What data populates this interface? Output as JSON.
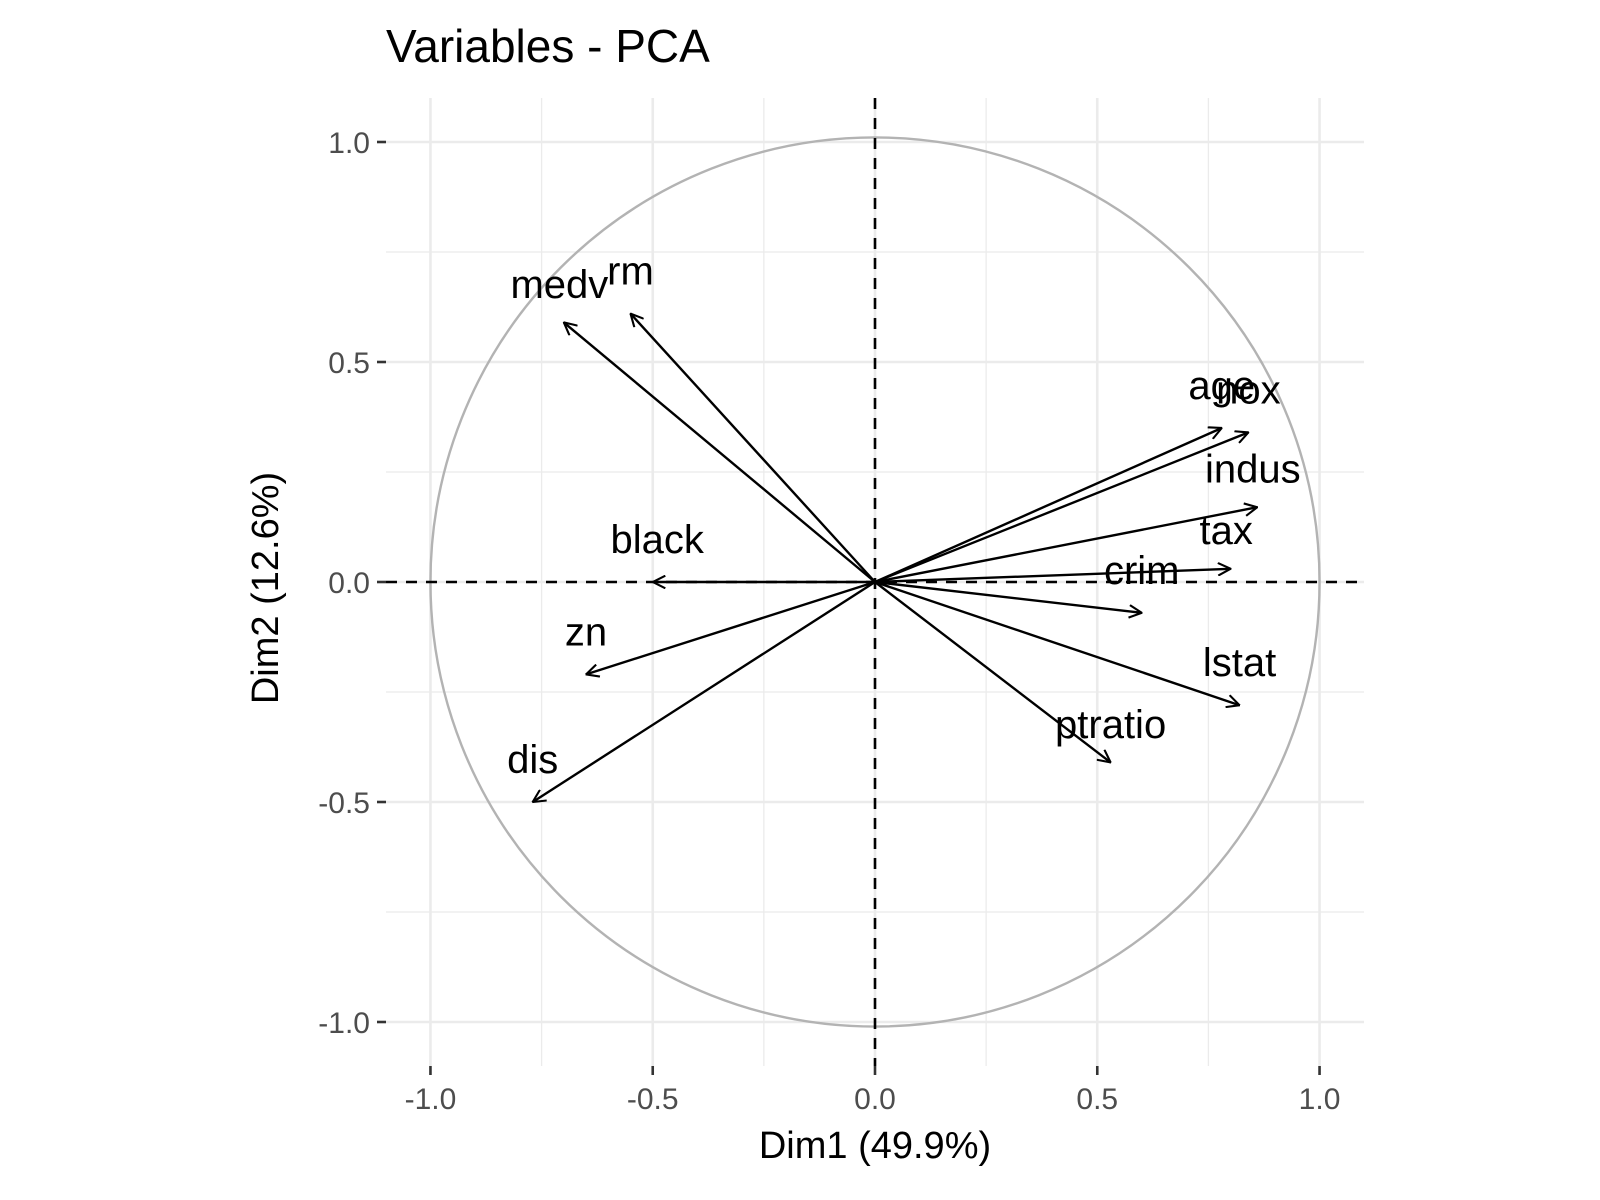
{
  "chart_data": {
    "type": "scatter",
    "title": "Variables - PCA",
    "xlabel": "Dim1 (49.9%)",
    "ylabel": "Dim2 (12.6%)",
    "xlim": [
      -1.1,
      1.1
    ],
    "ylim": [
      -1.1,
      1.1
    ],
    "x_ticks": [
      -1.0,
      -0.5,
      0.0,
      0.5,
      1.0
    ],
    "x_tick_labels": [
      "-1.0",
      "-0.5",
      "0.0",
      "0.5",
      "1.0"
    ],
    "y_ticks": [
      -1.0,
      -0.5,
      0.0,
      0.5,
      1.0
    ],
    "y_tick_labels": [
      "-1.0",
      "-0.5",
      "0.0",
      "0.5",
      "1.0"
    ],
    "grid": true,
    "unit_circle": true,
    "zero_lines": "dashed",
    "series": [
      {
        "name": "medv",
        "x": -0.7,
        "y": 0.59,
        "label_x": -0.71,
        "label_y": 0.67
      },
      {
        "name": "rm",
        "x": -0.55,
        "y": 0.61,
        "label_x": -0.55,
        "label_y": 0.7
      },
      {
        "name": "black",
        "x": -0.5,
        "y": 0.0,
        "label_x": -0.49,
        "label_y": 0.09
      },
      {
        "name": "zn",
        "x": -0.65,
        "y": -0.21,
        "label_x": -0.65,
        "label_y": -0.12
      },
      {
        "name": "dis",
        "x": -0.77,
        "y": -0.5,
        "label_x": -0.77,
        "label_y": -0.41
      },
      {
        "name": "age",
        "x": 0.78,
        "y": 0.35,
        "label_x": 0.78,
        "label_y": 0.44
      },
      {
        "name": "nox",
        "x": 0.84,
        "y": 0.34,
        "label_x": 0.84,
        "label_y": 0.43
      },
      {
        "name": "indus",
        "x": 0.86,
        "y": 0.17,
        "label_x": 0.85,
        "label_y": 0.25
      },
      {
        "name": "tax",
        "x": 0.8,
        "y": 0.03,
        "label_x": 0.79,
        "label_y": 0.11
      },
      {
        "name": "crim",
        "x": 0.6,
        "y": -0.07,
        "label_x": 0.6,
        "label_y": 0.02
      },
      {
        "name": "lstat",
        "x": 0.82,
        "y": -0.28,
        "label_x": 0.82,
        "label_y": -0.19
      },
      {
        "name": "ptratio",
        "x": 0.53,
        "y": -0.41,
        "label_x": 0.53,
        "label_y": -0.33
      }
    ]
  }
}
